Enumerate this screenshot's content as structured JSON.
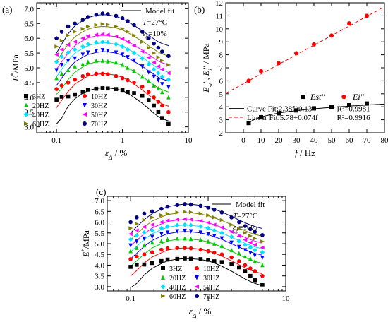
{
  "chart_data": [
    {
      "panel": "(a)",
      "type": "scatter",
      "x_scale": "log",
      "xlim": [
        0.05,
        10
      ],
      "ylim": [
        2.8,
        7.2
      ],
      "x_ticks": [
        "0.1",
        "1",
        "10"
      ],
      "y_ticks": [
        "3.0",
        "3.5",
        "4.0",
        "4.5",
        "5.0",
        "5.5",
        "6.0",
        "6.5",
        "7.0"
      ],
      "xlabel": "ε_Δ / %",
      "ylabel": "E*/MPa",
      "legend": [
        "Model fit"
      ],
      "annotations": [
        "T=27°C",
        "ε0=10%"
      ],
      "x": [
        0.1,
        0.12,
        0.15,
        0.19,
        0.25,
        0.3,
        0.4,
        0.5,
        0.6,
        0.8,
        1.0,
        1.2,
        1.5,
        2.0,
        2.5,
        3.0,
        3.5,
        4.0,
        5.0
      ],
      "series": [
        {
          "name": "3HZ",
          "color": "#000000",
          "marker": "square",
          "values": [
            3.92,
            4.02,
            4.03,
            4.1,
            4.19,
            4.26,
            4.29,
            4.31,
            4.3,
            4.28,
            4.25,
            4.18,
            4.14,
            4.05,
            3.9,
            3.72,
            3.5,
            3.3,
            3.1
          ],
          "fit": [
            3.1,
            3.3,
            3.7,
            3.95,
            4.14,
            4.22,
            4.3,
            4.32,
            4.32,
            4.28,
            4.23,
            4.14,
            4.0,
            3.8,
            3.62,
            3.46,
            3.35,
            3.28,
            3.2
          ]
        },
        {
          "name": "10HZ",
          "color": "#ff0000",
          "marker": "circle",
          "values": [
            4.28,
            4.4,
            4.5,
            4.6,
            4.72,
            4.78,
            4.8,
            4.8,
            4.78,
            4.72,
            4.65,
            4.58,
            4.5,
            4.36,
            4.18,
            4.0,
            3.85,
            3.72,
            3.5
          ],
          "fit": [
            3.65,
            3.9,
            4.2,
            4.45,
            4.62,
            4.72,
            4.78,
            4.8,
            4.79,
            4.75,
            4.68,
            4.58,
            4.45,
            4.25,
            4.08,
            3.95,
            3.85,
            3.78,
            3.7
          ]
        },
        {
          "name": "20HZ",
          "color": "#00c800",
          "marker": "triangle",
          "values": [
            4.65,
            4.8,
            4.92,
            5.05,
            5.12,
            5.2,
            5.24,
            5.24,
            5.22,
            5.18,
            5.1,
            5.0,
            4.9,
            4.7,
            4.55,
            4.4,
            4.3,
            4.18,
            4.0
          ],
          "fit": [
            4.1,
            4.3,
            4.6,
            4.85,
            5.03,
            5.12,
            5.2,
            5.22,
            5.21,
            5.16,
            5.09,
            5.0,
            4.88,
            4.7,
            4.55,
            4.42,
            4.32,
            4.26,
            4.18
          ]
        },
        {
          "name": "30HZ",
          "color": "#0000ff",
          "marker": "tri-down",
          "values": [
            4.92,
            5.1,
            5.24,
            5.32,
            5.45,
            5.52,
            5.58,
            5.6,
            5.58,
            5.52,
            5.45,
            5.36,
            5.25,
            5.05,
            4.85,
            4.7,
            4.58,
            4.45,
            4.35
          ],
          "fit": [
            4.4,
            4.65,
            4.95,
            5.2,
            5.36,
            5.45,
            5.52,
            5.55,
            5.54,
            5.5,
            5.43,
            5.34,
            5.22,
            5.05,
            4.9,
            4.78,
            4.68,
            4.62,
            4.55
          ]
        },
        {
          "name": "40HZ",
          "color": "#00e0ff",
          "marker": "diamond",
          "values": [
            5.2,
            5.38,
            5.52,
            5.62,
            5.72,
            5.8,
            5.86,
            5.88,
            5.86,
            5.8,
            5.72,
            5.62,
            5.5,
            5.32,
            5.12,
            4.95,
            4.82,
            4.7,
            4.6
          ],
          "fit": [
            4.7,
            4.95,
            5.25,
            5.5,
            5.66,
            5.75,
            5.82,
            5.85,
            5.84,
            5.8,
            5.73,
            5.64,
            5.52,
            5.35,
            5.2,
            5.08,
            4.98,
            4.92,
            4.85
          ]
        },
        {
          "name": "50HZ",
          "color": "#ff00ff",
          "marker": "tri-left",
          "values": [
            5.45,
            5.62,
            5.78,
            5.88,
            6.0,
            6.08,
            6.12,
            6.14,
            6.12,
            6.06,
            5.98,
            5.88,
            5.75,
            5.55,
            5.35,
            5.18,
            5.05,
            4.95,
            4.82
          ],
          "fit": [
            4.95,
            5.2,
            5.5,
            5.75,
            5.92,
            6.01,
            6.08,
            6.1,
            6.09,
            6.05,
            5.98,
            5.89,
            5.77,
            5.6,
            5.45,
            5.33,
            5.23,
            5.17,
            5.1
          ]
        },
        {
          "name": "60HZ",
          "color": "#808000",
          "marker": "tri-right",
          "values": [
            5.72,
            5.92,
            6.1,
            6.22,
            6.32,
            6.4,
            6.45,
            6.48,
            6.46,
            6.4,
            6.32,
            6.22,
            6.1,
            5.88,
            5.68,
            5.5,
            5.36,
            5.24,
            5.1
          ],
          "fit": [
            5.2,
            5.48,
            5.8,
            6.05,
            6.22,
            6.31,
            6.38,
            6.4,
            6.39,
            6.35,
            6.28,
            6.19,
            6.07,
            5.9,
            5.75,
            5.63,
            5.53,
            5.47,
            5.4
          ]
        },
        {
          "name": "70HZ",
          "color": "#000080",
          "marker": "circle",
          "values": [
            6.0,
            6.22,
            6.4,
            6.5,
            6.62,
            6.72,
            6.8,
            6.84,
            6.82,
            6.76,
            6.68,
            6.58,
            6.45,
            6.22,
            6.0,
            5.82,
            5.68,
            5.55,
            5.4
          ],
          "fit": [
            5.5,
            5.8,
            6.15,
            6.42,
            6.6,
            6.7,
            6.78,
            6.8,
            6.79,
            6.74,
            6.66,
            6.56,
            6.44,
            6.25,
            6.1,
            5.98,
            5.88,
            5.82,
            5.75
          ]
        }
      ]
    },
    {
      "panel": "(b)",
      "type": "scatter",
      "xlim": [
        -10,
        80
      ],
      "ylim": [
        2,
        12
      ],
      "x_ticks": [
        "0",
        "10",
        "20",
        "30",
        "40",
        "50",
        "60",
        "70",
        "80"
      ],
      "y_ticks": [
        "2",
        "3",
        "4",
        "5",
        "6",
        "7",
        "8",
        "9",
        "10",
        "11",
        "12"
      ],
      "xlabel": "f / Hz",
      "ylabel": "Est'', Ei'' / MPa",
      "x": [
        3,
        10,
        20,
        30,
        40,
        50,
        60,
        70
      ],
      "series": [
        {
          "name": "Est''",
          "color": "#000000",
          "marker": "square",
          "values": [
            2.75,
            3.2,
            3.5,
            3.72,
            3.88,
            4.0,
            4.12,
            4.25
          ]
        },
        {
          "name": "Ei''",
          "color": "#ff0000",
          "marker": "circle",
          "values": [
            6.0,
            6.75,
            7.35,
            8.12,
            8.8,
            9.48,
            10.42,
            11.0
          ]
        }
      ],
      "fits": [
        {
          "label": "Curve Fit:2.38f^0.13",
          "r2": "R²=0.9981"
        },
        {
          "label": "Linear Fit:5.78+0.074f",
          "r2": "R²=0.9916"
        }
      ]
    },
    {
      "panel": "(c)",
      "type": "scatter",
      "x_scale": "log",
      "xlim": [
        0.05,
        10
      ],
      "ylim": [
        2.8,
        7.2
      ],
      "x_ticks": [
        "0.1",
        "1",
        "10"
      ],
      "y_ticks": [
        "3.0",
        "3.5",
        "4.0",
        "4.5",
        "5.0",
        "5.5",
        "6.0",
        "6.5",
        "7.0"
      ],
      "xlabel": "ε_Δ / %",
      "ylabel": "E*/MPa",
      "legend": [
        "Model fit"
      ],
      "annotations": [
        "T=27°C",
        "ε0=10%"
      ],
      "x": [
        0.1,
        0.12,
        0.15,
        0.19,
        0.25,
        0.3,
        0.4,
        0.5,
        0.6,
        0.8,
        1.0,
        1.2,
        1.5,
        2.0,
        2.5,
        3.0,
        3.5,
        4.0,
        5.0
      ],
      "series": [
        {
          "name": "3HZ",
          "color": "#000000",
          "marker": "square",
          "values": [
            3.92,
            4.02,
            4.03,
            4.1,
            4.19,
            4.26,
            4.29,
            4.31,
            4.3,
            4.28,
            4.25,
            4.18,
            4.14,
            4.05,
            3.9,
            3.72,
            3.5,
            3.3,
            3.1
          ],
          "fit": [
            2.95,
            3.15,
            3.55,
            3.85,
            4.08,
            4.2,
            4.28,
            4.3,
            4.3,
            4.26,
            4.2,
            4.1,
            3.95,
            3.72,
            3.52,
            3.36,
            3.24,
            3.15,
            3.05
          ]
        },
        {
          "name": "10HZ",
          "color": "#ff0000",
          "marker": "circle",
          "values": [
            4.28,
            4.4,
            4.5,
            4.6,
            4.72,
            4.78,
            4.8,
            4.8,
            4.78,
            4.72,
            4.65,
            4.58,
            4.5,
            4.36,
            4.18,
            4.0,
            3.85,
            3.72,
            3.5
          ],
          "fit": [
            3.5,
            3.75,
            4.1,
            4.38,
            4.58,
            4.7,
            4.78,
            4.8,
            4.79,
            4.74,
            4.66,
            4.56,
            4.42,
            4.2,
            4.02,
            3.88,
            3.77,
            3.7,
            3.6
          ]
        },
        {
          "name": "20HZ",
          "color": "#00c800",
          "marker": "triangle",
          "values": [
            4.65,
            4.8,
            4.92,
            5.05,
            5.12,
            5.2,
            5.24,
            5.24,
            5.22,
            5.18,
            5.1,
            5.0,
            4.9,
            4.7,
            4.55,
            4.4,
            4.3,
            4.18,
            4.0
          ],
          "fit": [
            3.95,
            4.2,
            4.52,
            4.8,
            5.0,
            5.12,
            5.2,
            5.22,
            5.21,
            5.16,
            5.08,
            4.98,
            4.85,
            4.65,
            4.48,
            4.35,
            4.25,
            4.18,
            4.08
          ]
        },
        {
          "name": "30HZ",
          "color": "#0000ff",
          "marker": "tri-down",
          "values": [
            4.92,
            5.1,
            5.24,
            5.32,
            5.45,
            5.52,
            5.58,
            5.6,
            5.58,
            5.52,
            5.45,
            5.36,
            5.25,
            5.05,
            4.85,
            4.7,
            4.58,
            4.45,
            4.35
          ],
          "fit": [
            4.3,
            4.55,
            4.88,
            5.15,
            5.35,
            5.46,
            5.54,
            5.56,
            5.55,
            5.5,
            5.42,
            5.32,
            5.2,
            5.0,
            4.84,
            4.72,
            4.62,
            4.55,
            4.46
          ]
        },
        {
          "name": "40HZ",
          "color": "#00e0ff",
          "marker": "diamond",
          "values": [
            5.2,
            5.38,
            5.52,
            5.62,
            5.72,
            5.8,
            5.86,
            5.88,
            5.86,
            5.8,
            5.72,
            5.62,
            5.5,
            5.32,
            5.12,
            4.95,
            4.82,
            4.7,
            4.6
          ],
          "fit": [
            4.62,
            4.88,
            5.2,
            5.46,
            5.65,
            5.76,
            5.84,
            5.86,
            5.85,
            5.8,
            5.72,
            5.62,
            5.5,
            5.3,
            5.14,
            5.02,
            4.92,
            4.85,
            4.76
          ]
        },
        {
          "name": "50HZ",
          "color": "#ff00ff",
          "marker": "tri-left",
          "values": [
            5.45,
            5.62,
            5.78,
            5.88,
            6.0,
            6.08,
            6.12,
            6.14,
            6.12,
            6.06,
            5.98,
            5.88,
            5.75,
            5.55,
            5.35,
            5.18,
            5.05,
            4.95,
            4.82
          ],
          "fit": [
            4.9,
            5.15,
            5.47,
            5.73,
            5.92,
            6.03,
            6.1,
            6.12,
            6.11,
            6.06,
            5.98,
            5.88,
            5.76,
            5.57,
            5.41,
            5.29,
            5.19,
            5.12,
            5.03
          ]
        },
        {
          "name": "60HZ",
          "color": "#808000",
          "marker": "tri-right",
          "values": [
            5.72,
            5.92,
            6.1,
            6.22,
            6.32,
            6.4,
            6.45,
            6.48,
            6.46,
            6.4,
            6.32,
            6.22,
            6.1,
            5.88,
            5.68,
            5.5,
            5.36,
            5.24,
            5.1
          ],
          "fit": [
            5.18,
            5.45,
            5.78,
            6.05,
            6.24,
            6.35,
            6.42,
            6.44,
            6.43,
            6.38,
            6.3,
            6.2,
            6.08,
            5.88,
            5.72,
            5.6,
            5.5,
            5.43,
            5.34
          ]
        },
        {
          "name": "70HZ",
          "color": "#000080",
          "marker": "circle",
          "values": [
            6.0,
            6.22,
            6.4,
            6.5,
            6.62,
            6.72,
            6.8,
            6.84,
            6.82,
            6.76,
            6.68,
            6.58,
            6.45,
            6.22,
            6.0,
            5.82,
            5.68,
            5.55,
            5.4
          ],
          "fit": [
            5.5,
            5.78,
            6.12,
            6.4,
            6.6,
            6.72,
            6.8,
            6.84,
            6.83,
            6.78,
            6.7,
            6.6,
            6.47,
            6.27,
            6.1,
            5.97,
            5.87,
            5.8,
            5.7
          ]
        }
      ]
    }
  ]
}
